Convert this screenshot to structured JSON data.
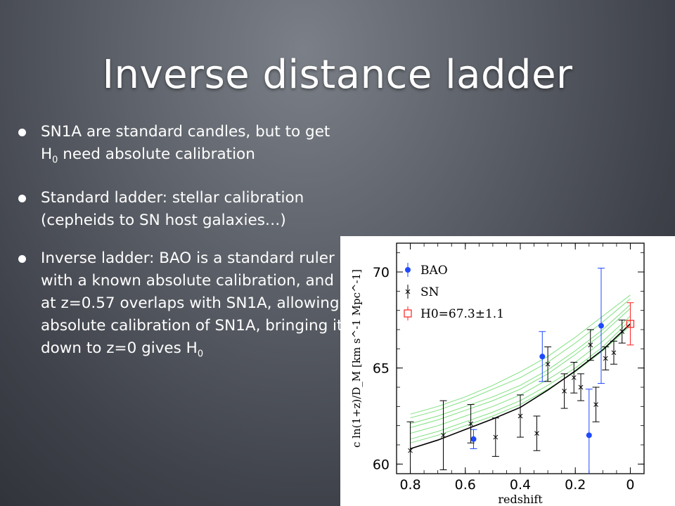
{
  "slide": {
    "title": "Inverse distance ladder",
    "bullets": [
      {
        "parts": [
          {
            "t": "SN1A are standard candles, but to get H"
          },
          {
            "sub": "0"
          },
          {
            "t": " need absolute calibration"
          }
        ]
      },
      {
        "parts": [
          {
            "t": "Standard ladder: stellar calibration (cepheids to SN host galaxies…)"
          }
        ]
      },
      {
        "parts": [
          {
            "t": "Inverse ladder: BAO is a standard ruler with a known absolute calibration, and   at z=0.57 overlaps with SN1A, allowing absolute calibration of SN1A, bringing it down to z=0 gives H"
          },
          {
            "sub": "0"
          }
        ]
      }
    ]
  },
  "chart_data": {
    "type": "scatter",
    "xlabel": "redshift",
    "ylabel": "c ln(1+z)/D_M [km s^-1 Mpc^-1]",
    "xlim": [
      0.85,
      -0.05
    ],
    "ylim": [
      59.5,
      71.5
    ],
    "xticks": [
      "0.8",
      "0.6",
      "0.4",
      "0.2",
      "0"
    ],
    "yticks": [
      "60",
      "65",
      "70"
    ],
    "legend": {
      "position": "top-left",
      "entries": [
        {
          "label": "BAO",
          "marker": "dot",
          "color": "#1f49ff"
        },
        {
          "label": "SN",
          "marker": "cross",
          "color": "#000000"
        },
        {
          "label": "H0=67.3±1.1",
          "marker": "square",
          "color": "#ff2020"
        }
      ]
    },
    "series": [
      {
        "name": "BAO",
        "color": "#1f49ff",
        "points": [
          {
            "x": 0.57,
            "y": 61.3,
            "err": 0.5
          },
          {
            "x": 0.32,
            "y": 65.6,
            "err": 1.3
          },
          {
            "x": 0.15,
            "y": 61.5,
            "err": 2.4
          },
          {
            "x": 0.106,
            "y": 67.2,
            "err": 3.0
          }
        ]
      },
      {
        "name": "SN",
        "color": "#000000",
        "points": [
          {
            "x": 0.8,
            "y": 60.7,
            "err": 1.5
          },
          {
            "x": 0.68,
            "y": 61.5,
            "err": 1.8
          },
          {
            "x": 0.58,
            "y": 62.1,
            "err": 1.0
          },
          {
            "x": 0.49,
            "y": 61.4,
            "err": 1.0
          },
          {
            "x": 0.4,
            "y": 62.5,
            "err": 1.1
          },
          {
            "x": 0.34,
            "y": 61.6,
            "err": 0.9
          },
          {
            "x": 0.3,
            "y": 65.2,
            "err": 0.9
          },
          {
            "x": 0.24,
            "y": 63.8,
            "err": 0.9
          },
          {
            "x": 0.205,
            "y": 64.5,
            "err": 0.8
          },
          {
            "x": 0.18,
            "y": 64.0,
            "err": 0.7
          },
          {
            "x": 0.145,
            "y": 66.2,
            "err": 0.8
          },
          {
            "x": 0.125,
            "y": 63.1,
            "err": 0.9
          },
          {
            "x": 0.09,
            "y": 65.5,
            "err": 0.6
          },
          {
            "x": 0.06,
            "y": 65.8,
            "err": 0.6
          },
          {
            "x": 0.03,
            "y": 66.9,
            "err": 0.6
          }
        ]
      },
      {
        "name": "H0",
        "color": "#ff2020",
        "points": [
          {
            "x": 0.0,
            "y": 67.3,
            "err": 1.1
          }
        ]
      }
    ],
    "fit_curve": {
      "color": "#000000",
      "x": [
        0.8,
        0.7,
        0.6,
        0.5,
        0.4,
        0.3,
        0.2,
        0.1,
        0.0
      ],
      "y": [
        60.8,
        61.25,
        61.8,
        62.35,
        62.95,
        63.85,
        64.85,
        65.95,
        67.3
      ]
    },
    "band_curves": {
      "color": "#7fe07f",
      "x": [
        0.8,
        0.7,
        0.6,
        0.5,
        0.4,
        0.3,
        0.2,
        0.1,
        0.0
      ],
      "curves": [
        [
          61.3,
          61.7,
          62.2,
          62.7,
          63.3,
          64.1,
          65.0,
          66.1,
          67.5
        ],
        [
          61.6,
          62.0,
          62.5,
          63.0,
          63.6,
          64.4,
          65.3,
          66.4,
          67.7
        ],
        [
          61.9,
          62.3,
          62.8,
          63.3,
          63.9,
          64.7,
          65.7,
          66.8,
          68.1
        ],
        [
          62.1,
          62.5,
          63.0,
          63.5,
          64.1,
          64.9,
          65.9,
          67.0,
          68.3
        ],
        [
          62.4,
          62.8,
          63.3,
          63.9,
          64.5,
          65.3,
          66.3,
          67.4,
          68.6
        ],
        [
          61.1,
          61.5,
          62.0,
          62.5,
          63.1,
          63.9,
          64.8,
          65.9,
          67.2
        ],
        [
          62.6,
          63.0,
          63.5,
          64.1,
          64.8,
          65.6,
          66.6,
          67.7,
          68.8
        ]
      ]
    }
  }
}
